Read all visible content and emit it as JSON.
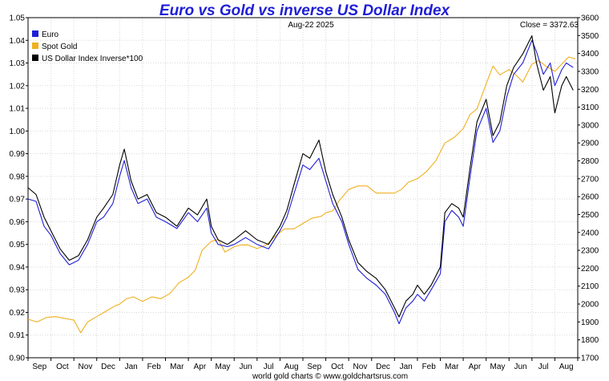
{
  "chart_data": {
    "type": "line",
    "title": "Euro vs Gold vs inverse US Dollar Index",
    "date_label": "Aug-22  2025",
    "close_label": "Close = 3372.63",
    "footer": "world gold charts © www.goldchartsrus.com",
    "xlabel": "",
    "ylabel_left": "",
    "ylabel_right": "",
    "left_axis": {
      "min": 0.9,
      "max": 1.05,
      "ticks": [
        "0.90",
        "0.91",
        "0.92",
        "0.93",
        "0.94",
        "0.95",
        "0.96",
        "0.97",
        "0.98",
        "0.99",
        "1.00",
        "1.01",
        "1.02",
        "1.03",
        "1.04",
        "1.05"
      ]
    },
    "right_axis": {
      "min": 1700,
      "max": 3600,
      "ticks": [
        "1700",
        "1800",
        "1900",
        "2000",
        "2100",
        "2200",
        "2300",
        "2400",
        "2500",
        "2600",
        "2700",
        "2800",
        "2900",
        "3000",
        "3100",
        "3200",
        "3300",
        "3400",
        "3500",
        "3600"
      ]
    },
    "months": [
      "Sep",
      "Oct",
      "Nov",
      "Dec",
      "Jan",
      "Feb",
      "Mar",
      "Apr",
      "May",
      "Jun",
      "Jul",
      "Aug",
      "Sep",
      "Oct",
      "Nov",
      "Dec",
      "Jan",
      "Feb",
      "Mar",
      "Apr",
      "May",
      "Jun",
      "Jul",
      "Aug"
    ],
    "x_range": [
      0,
      24
    ],
    "grid": true,
    "legend_position": "top-left",
    "series": [
      {
        "name": "Euro",
        "color": "#1f1fd6",
        "axis": "left",
        "x": [
          0,
          0.35,
          0.7,
          1.0,
          1.4,
          1.8,
          2.2,
          2.6,
          3.0,
          3.3,
          3.7,
          4.0,
          4.2,
          4.5,
          4.8,
          5.2,
          5.6,
          6.0,
          6.5,
          7.0,
          7.4,
          7.8,
          8.0,
          8.3,
          8.7,
          9.0,
          9.5,
          10.0,
          10.5,
          11.0,
          11.3,
          11.6,
          12.0,
          12.3,
          12.7,
          13.0,
          13.3,
          13.7,
          14.0,
          14.4,
          14.8,
          15.2,
          15.6,
          16.0,
          16.2,
          16.5,
          16.8,
          17.0,
          17.3,
          17.6,
          18.0,
          18.2,
          18.5,
          18.8,
          19.0,
          19.3,
          19.6,
          20.0,
          20.3,
          20.6,
          20.9,
          21.2,
          21.6,
          22.0,
          22.2,
          22.5,
          22.8,
          23.0,
          23.3,
          23.5,
          23.8
        ],
        "values": [
          0.97,
          0.969,
          0.958,
          0.954,
          0.946,
          0.941,
          0.943,
          0.95,
          0.96,
          0.962,
          0.968,
          0.98,
          0.987,
          0.975,
          0.968,
          0.97,
          0.962,
          0.96,
          0.957,
          0.964,
          0.96,
          0.966,
          0.955,
          0.95,
          0.949,
          0.95,
          0.953,
          0.95,
          0.948,
          0.956,
          0.962,
          0.972,
          0.985,
          0.983,
          0.988,
          0.978,
          0.968,
          0.96,
          0.95,
          0.939,
          0.935,
          0.932,
          0.928,
          0.92,
          0.915,
          0.922,
          0.925,
          0.928,
          0.925,
          0.93,
          0.937,
          0.96,
          0.965,
          0.962,
          0.958,
          0.98,
          1.0,
          1.01,
          0.995,
          1.0,
          1.015,
          1.025,
          1.03,
          1.04,
          1.035,
          1.025,
          1.03,
          1.02,
          1.027,
          1.03,
          1.028
        ]
      },
      {
        "name": "Spot Gold",
        "color": "#f0b020",
        "axis": "right",
        "x": [
          0,
          0.4,
          0.8,
          1.2,
          1.6,
          2.0,
          2.3,
          2.6,
          3.0,
          3.4,
          3.8,
          4.0,
          4.3,
          4.6,
          5.0,
          5.4,
          5.8,
          6.2,
          6.6,
          7.0,
          7.3,
          7.6,
          8.0,
          8.3,
          8.6,
          9.0,
          9.3,
          9.6,
          10.0,
          10.4,
          10.8,
          11.2,
          11.6,
          12.0,
          12.4,
          12.8,
          13.0,
          13.3,
          13.6,
          14.0,
          14.4,
          14.8,
          15.2,
          15.6,
          16.0,
          16.3,
          16.6,
          17.0,
          17.4,
          17.8,
          18.2,
          18.6,
          19.0,
          19.3,
          19.6,
          20.0,
          20.3,
          20.6,
          21.0,
          21.3,
          21.6,
          22.0,
          22.3,
          22.6,
          23.0,
          23.3,
          23.6,
          23.9
        ],
        "values": [
          1915,
          1900,
          1925,
          1930,
          1920,
          1910,
          1840,
          1900,
          1930,
          1960,
          1990,
          2000,
          2030,
          2040,
          2015,
          2040,
          2030,
          2060,
          2120,
          2150,
          2190,
          2300,
          2350,
          2360,
          2290,
          2320,
          2330,
          2330,
          2310,
          2330,
          2380,
          2420,
          2420,
          2450,
          2480,
          2490,
          2510,
          2520,
          2580,
          2640,
          2660,
          2660,
          2620,
          2620,
          2620,
          2640,
          2680,
          2700,
          2740,
          2800,
          2900,
          2930,
          2980,
          3060,
          3090,
          3230,
          3330,
          3280,
          3310,
          3280,
          3240,
          3340,
          3360,
          3330,
          3300,
          3340,
          3380,
          3370
        ]
      },
      {
        "name": "US Dollar Index Inverse*100",
        "color": "#000000",
        "axis": "left",
        "x": [
          0,
          0.35,
          0.7,
          1.0,
          1.4,
          1.8,
          2.2,
          2.6,
          3.0,
          3.3,
          3.7,
          4.0,
          4.2,
          4.5,
          4.8,
          5.2,
          5.6,
          6.0,
          6.5,
          7.0,
          7.4,
          7.8,
          8.0,
          8.3,
          8.7,
          9.0,
          9.5,
          10.0,
          10.5,
          11.0,
          11.3,
          11.6,
          12.0,
          12.3,
          12.7,
          13.0,
          13.3,
          13.7,
          14.0,
          14.4,
          14.8,
          15.2,
          15.6,
          16.0,
          16.2,
          16.5,
          16.8,
          17.0,
          17.3,
          17.6,
          18.0,
          18.2,
          18.5,
          18.8,
          19.0,
          19.3,
          19.6,
          20.0,
          20.3,
          20.6,
          20.9,
          21.2,
          21.6,
          22.0,
          22.2,
          22.5,
          22.8,
          23.0,
          23.3,
          23.5,
          23.8
        ],
        "values": [
          0.975,
          0.972,
          0.962,
          0.956,
          0.948,
          0.943,
          0.945,
          0.952,
          0.962,
          0.966,
          0.972,
          0.985,
          0.992,
          0.978,
          0.97,
          0.972,
          0.964,
          0.962,
          0.958,
          0.966,
          0.963,
          0.97,
          0.958,
          0.952,
          0.95,
          0.952,
          0.956,
          0.952,
          0.95,
          0.958,
          0.965,
          0.976,
          0.99,
          0.988,
          0.996,
          0.982,
          0.972,
          0.962,
          0.952,
          0.942,
          0.938,
          0.935,
          0.93,
          0.922,
          0.918,
          0.925,
          0.928,
          0.932,
          0.928,
          0.932,
          0.94,
          0.964,
          0.968,
          0.966,
          0.962,
          0.984,
          1.004,
          1.014,
          0.998,
          1.004,
          1.02,
          1.028,
          1.034,
          1.042,
          1.03,
          1.018,
          1.024,
          1.008,
          1.02,
          1.024,
          1.018
        ]
      }
    ]
  }
}
